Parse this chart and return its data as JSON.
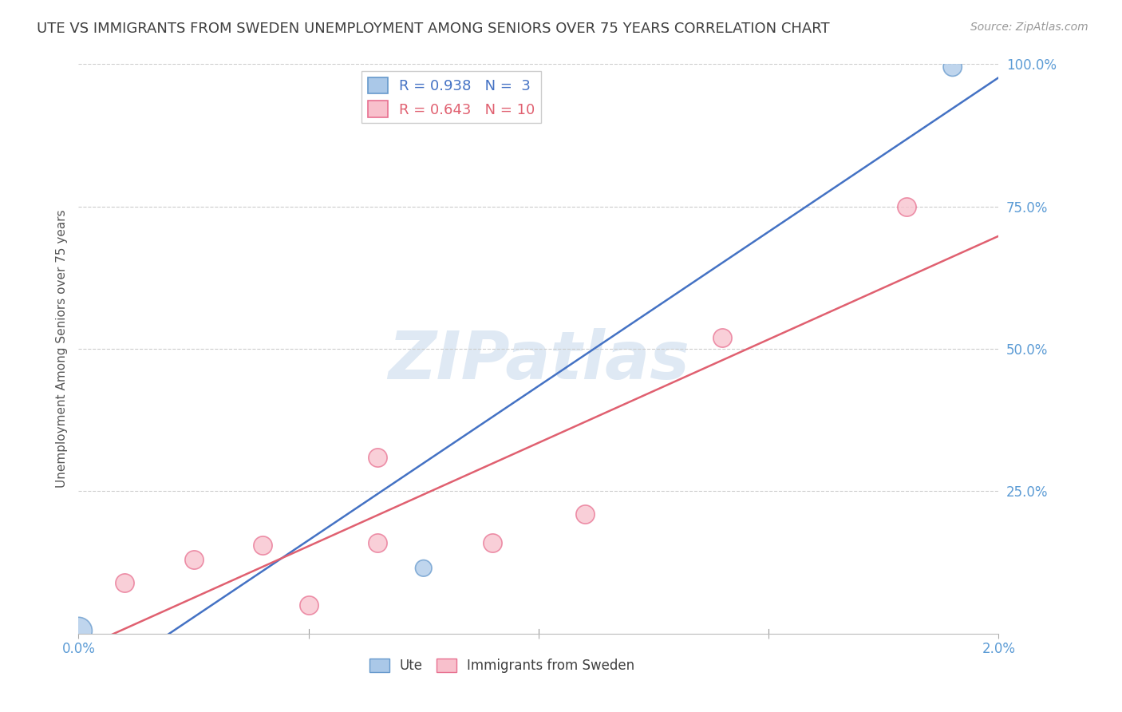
{
  "title": "UTE VS IMMIGRANTS FROM SWEDEN UNEMPLOYMENT AMONG SENIORS OVER 75 YEARS CORRELATION CHART",
  "source": "Source: ZipAtlas.com",
  "ylabel": "Unemployment Among Seniors over 75 years",
  "xlim": [
    0.0,
    0.02
  ],
  "ylim": [
    0.0,
    1.0
  ],
  "xtick_positions": [
    0.0,
    0.005,
    0.01,
    0.015,
    0.02
  ],
  "xtick_labels": [
    "0.0%",
    "",
    "",
    "",
    "2.0%"
  ],
  "ytick_labels": [
    "100.0%",
    "75.0%",
    "50.0%",
    "25.0%"
  ],
  "ytick_positions": [
    1.0,
    0.75,
    0.5,
    0.25
  ],
  "ute_points_x": [
    0.0,
    0.0075,
    0.019
  ],
  "ute_points_y": [
    0.005,
    0.115,
    0.995
  ],
  "ute_color": "#aac8e8",
  "ute_edge_color": "#6699cc",
  "ute_line_color": "#4472c4",
  "ute_R": 0.938,
  "ute_N": 3,
  "immig_points_x": [
    0.001,
    0.0025,
    0.004,
    0.005,
    0.0065,
    0.0065,
    0.009,
    0.011,
    0.014,
    0.018
  ],
  "immig_points_y": [
    0.09,
    0.13,
    0.155,
    0.05,
    0.16,
    0.31,
    0.16,
    0.21,
    0.52,
    0.75
  ],
  "immig_color": "#f8c0cc",
  "immig_edge_color": "#e87090",
  "immig_line_color": "#e06070",
  "immig_R": 0.643,
  "immig_N": 10,
  "legend_R_ute": "R = 0.938",
  "legend_N_ute": "N =  3",
  "legend_R_immig": "R = 0.643",
  "legend_N_immig": "N = 10",
  "watermark": "ZIPatlas",
  "background_color": "#ffffff",
  "title_color": "#404040",
  "axis_label_color": "#555555",
  "tick_label_color": "#5b9bd5",
  "grid_color": "#cccccc",
  "title_fontsize": 13,
  "source_fontsize": 10,
  "legend_fontsize": 13,
  "ylabel_fontsize": 11
}
